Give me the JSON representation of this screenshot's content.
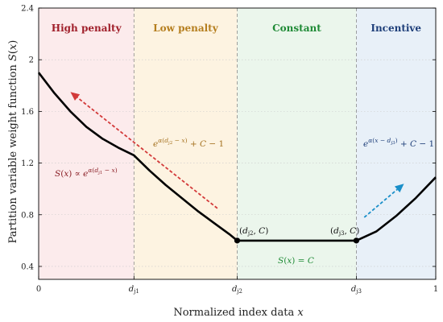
{
  "chart_data": {
    "type": "line",
    "xlabel": "Normalized index data x",
    "ylabel": "Partition variable weight function S(x)",
    "xlim": [
      0,
      1
    ],
    "ylim": [
      0.3,
      2.4
    ],
    "grid": "horizontal dotted",
    "x_ticks": [
      {
        "value": 0,
        "label": "0"
      },
      {
        "value": 0.24,
        "label": "dj1"
      },
      {
        "value": 0.5,
        "label": "dj2"
      },
      {
        "value": 0.8,
        "label": "dj3"
      },
      {
        "value": 1,
        "label": "1"
      }
    ],
    "y_ticks": [
      {
        "value": 0.4,
        "label": "0.4"
      },
      {
        "value": 0.8,
        "label": "0.8"
      },
      {
        "value": 1.2,
        "label": "1.2"
      },
      {
        "value": 1.6,
        "label": "1.6"
      },
      {
        "value": 2.0,
        "label": "2"
      },
      {
        "value": 2.4,
        "label": "2.4"
      }
    ],
    "regions": [
      {
        "name": "High penalty",
        "x0": 0,
        "x1": 0.24,
        "fill": "#fcebec",
        "text_color": "#a01f2a"
      },
      {
        "name": "Low penalty",
        "x0": 0.24,
        "x1": 0.5,
        "fill": "#fdf3e1",
        "text_color": "#b57e1e"
      },
      {
        "name": "Constant",
        "x0": 0.5,
        "x1": 0.8,
        "fill": "#ebf6ec",
        "text_color": "#1e8a35"
      },
      {
        "name": "Incentive",
        "x0": 0.8,
        "x1": 1,
        "fill": "#e8f0f8",
        "text_color": "#1f3f7a"
      }
    ],
    "series": [
      {
        "color": "#000000",
        "points": [
          [
            0,
            1.9
          ],
          [
            0.04,
            1.74
          ],
          [
            0.08,
            1.6
          ],
          [
            0.12,
            1.48
          ],
          [
            0.16,
            1.39
          ],
          [
            0.2,
            1.32
          ],
          [
            0.24,
            1.26
          ],
          [
            0.28,
            1.14
          ],
          [
            0.32,
            1.03
          ],
          [
            0.36,
            0.93
          ],
          [
            0.4,
            0.83
          ],
          [
            0.44,
            0.74
          ],
          [
            0.48,
            0.65
          ],
          [
            0.5,
            0.6
          ],
          [
            0.8,
            0.6
          ],
          [
            0.85,
            0.67
          ],
          [
            0.9,
            0.79
          ],
          [
            0.95,
            0.93
          ],
          [
            1.0,
            1.09
          ]
        ]
      }
    ],
    "markers": [
      {
        "x": 0.5,
        "y": 0.6,
        "label": "(dj2, C)"
      },
      {
        "x": 0.8,
        "y": 0.6,
        "label": "(dj3, C)"
      }
    ],
    "annotations": [
      {
        "text": "S(x) ∝ e^α(dj1 − x)",
        "color": "#8a1e25"
      },
      {
        "text": "e^α(dj2 − x) + C − 1",
        "color": "#a57220"
      },
      {
        "text": "S(x) = C",
        "color": "#1e8a35"
      },
      {
        "text": "e^α(x − dj3) + C − 1",
        "color": "#1f3f7a"
      }
    ],
    "arrows": [
      {
        "from": [
          0.45,
          0.85
        ],
        "to": [
          0.08,
          1.75
        ],
        "color": "#d33a3a"
      },
      {
        "from": [
          0.82,
          0.78
        ],
        "to": [
          0.92,
          1.04
        ],
        "color": "#1a8fc9"
      }
    ]
  }
}
